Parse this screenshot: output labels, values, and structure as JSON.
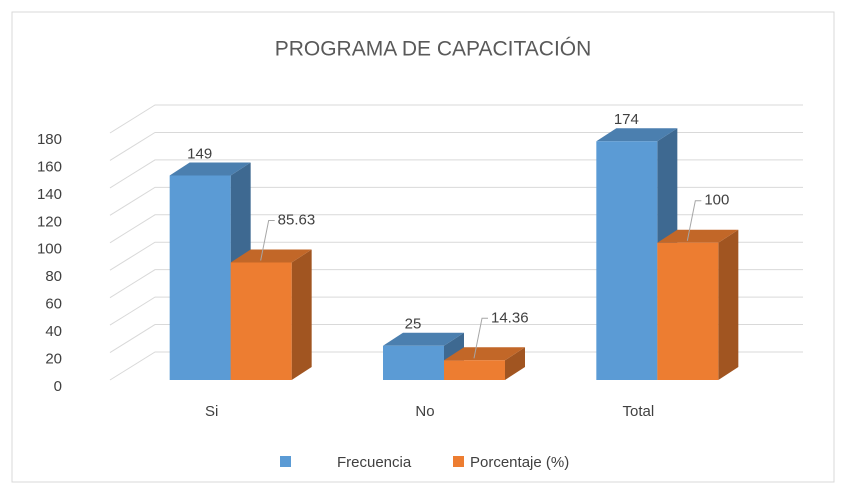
{
  "chart_data": {
    "type": "bar3d",
    "title": "PROGRAMA DE CAPACITACIÓN",
    "categories": [
      "Si",
      "No",
      "Total"
    ],
    "series": [
      {
        "name": "Frecuencia",
        "color": "#5b9bd5",
        "values": [
          149,
          25,
          174
        ]
      },
      {
        "name": "Porcentaje (%)",
        "color": "#ed7d31",
        "values": [
          85.63,
          14.36,
          100
        ]
      }
    ],
    "ylim": [
      0,
      180
    ],
    "yticks": [
      0,
      20,
      40,
      60,
      80,
      100,
      120,
      140,
      160,
      180
    ],
    "grid": true,
    "legend": "bottom"
  }
}
